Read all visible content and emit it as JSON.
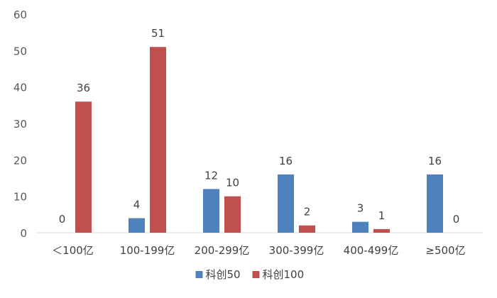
{
  "chart_data": {
    "type": "bar",
    "title": "",
    "xlabel": "",
    "ylabel": "",
    "categories": [
      "＜100亿",
      "100-199亿",
      "200-299亿",
      "300-399亿",
      "400-499亿",
      "≥500亿"
    ],
    "series": [
      {
        "name": "科创50",
        "color": "#4F81BD",
        "values": [
          0,
          4,
          12,
          16,
          3,
          16
        ]
      },
      {
        "name": "科创100",
        "color": "#C0504D",
        "values": [
          36,
          51,
          10,
          2,
          1,
          0
        ]
      }
    ],
    "ylim": [
      0,
      60
    ],
    "yticks": [
      0,
      10,
      20,
      30,
      40,
      50,
      60
    ],
    "grid": false,
    "legend_position": "bottom",
    "data_labels": true
  }
}
